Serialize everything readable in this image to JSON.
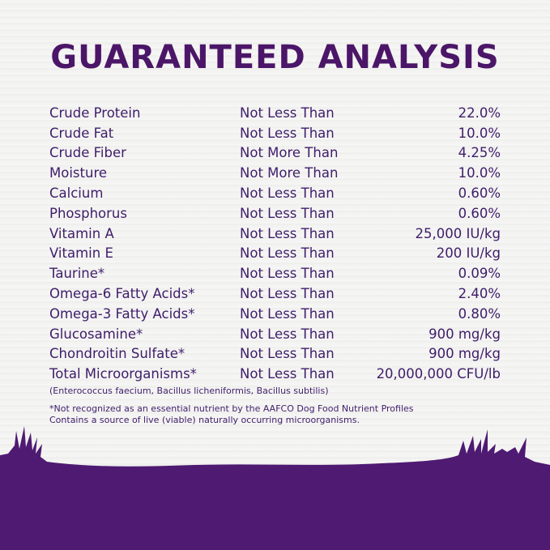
{
  "title": "GUARANTEED ANALYSIS",
  "rows": [
    {
      "nutrient": "Crude Protein",
      "qualifier": "Not Less Than",
      "value": "22.0%"
    },
    {
      "nutrient": "Crude Fat",
      "qualifier": "Not Less Than",
      "value": "10.0%"
    },
    {
      "nutrient": "Crude Fiber",
      "qualifier": "Not More Than",
      "value": "4.25%"
    },
    {
      "nutrient": "Moisture",
      "qualifier": "Not More Than",
      "value": "10.0%"
    },
    {
      "nutrient": "Calcium",
      "qualifier": "Not Less Than",
      "value": "0.60%"
    },
    {
      "nutrient": "Phosphorus",
      "qualifier": "Not Less Than",
      "value": "0.60%"
    },
    {
      "nutrient": "Vitamin A",
      "qualifier": "Not Less Than",
      "value": "25,000 IU/kg"
    },
    {
      "nutrient": "Vitamin E",
      "qualifier": "Not Less Than",
      "value": "200 IU/kg"
    },
    {
      "nutrient": "Taurine*",
      "qualifier": "Not Less Than",
      "value": "0.09%"
    },
    {
      "nutrient": "Omega-6 Fatty Acids*",
      "qualifier": "Not Less Than",
      "value": "2.40%"
    },
    {
      "nutrient": "Omega-3 Fatty Acids*",
      "qualifier": "Not Less Than",
      "value": "0.80%"
    },
    {
      "nutrient": "Glucosamine*",
      "qualifier": "Not Less Than",
      "value": "900 mg/kg"
    },
    {
      "nutrient": "Chondroitin Sulfate*",
      "qualifier": "Not Less Than",
      "value": "900 mg/kg"
    },
    {
      "nutrient": "Total Microorganisms*",
      "qualifier": "Not Less Than",
      "value": "20,000,000 CFU/lb"
    }
  ],
  "species_note": "(Enterococcus faecium, Bacillus licheniformis, Bacillus subtilis)",
  "footnote_1": "*Not recognized as an essential nutrient by the AAFCO Dog Food Nutrient Profiles",
  "footnote_2": "Contains a source of live (viable) naturally occurring microorganisms.",
  "colors": {
    "brand_purple": "#4b1668",
    "text": "#3e1d6a",
    "grass": "#4e1a72"
  }
}
